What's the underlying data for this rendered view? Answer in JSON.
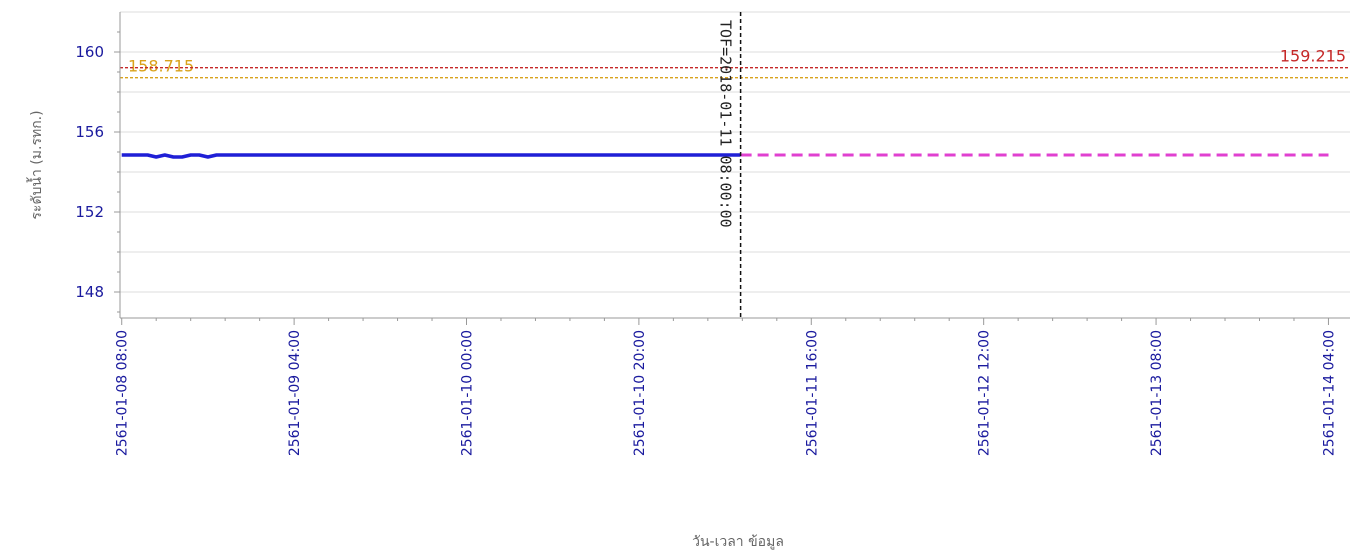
{
  "chart_data": {
    "type": "line",
    "title": "",
    "xlabel": "วัน-เวลา ข้อมูล",
    "ylabel": "ระดับน้ำ (ม.รทก.)",
    "ylim": [
      146.7,
      162.0
    ],
    "y_ticks": [
      148,
      152,
      156,
      160
    ],
    "x_tick_labels": [
      "2561-01-08 08:00",
      "2561-01-09 04:00",
      "2561-01-10 00:00",
      "2561-01-10 20:00",
      "2561-01-11 16:00",
      "2561-01-12 12:00",
      "2561-01-13 08:00",
      "2561-01-14 04:00"
    ],
    "x_tick_hours": [
      0,
      20,
      40,
      60,
      80,
      100,
      120,
      140
    ],
    "xlim_hours": [
      -0.2,
      142.5
    ],
    "grid": true,
    "series": [
      {
        "style": "observed",
        "color": "#1f1fd6",
        "x_hours": [
          0,
          1,
          2,
          3,
          4,
          5,
          6,
          7,
          8,
          9,
          10,
          11,
          12,
          14,
          18,
          24,
          30,
          40,
          50,
          60,
          65,
          71.8
        ],
        "values": [
          154.85,
          154.85,
          154.85,
          154.85,
          154.75,
          154.85,
          154.75,
          154.75,
          154.85,
          154.85,
          154.75,
          154.85,
          154.85,
          154.85,
          154.85,
          154.85,
          154.85,
          154.85,
          154.85,
          154.85,
          154.85,
          154.85
        ]
      },
      {
        "style": "forecast",
        "color": "#e040d0",
        "x_hours": [
          71.8,
          140
        ],
        "values": [
          154.85,
          154.85
        ]
      }
    ],
    "reference_lines": [
      {
        "value": 158.715,
        "label": "158.715",
        "color": "#d9a21b",
        "label_position": "left"
      },
      {
        "value": 159.215,
        "label": "159.215",
        "color": "#c62828",
        "label_position": "right"
      }
    ],
    "marker": {
      "x_hours": 71.8,
      "label": "TOF=2018-01-11 08:00:00"
    }
  }
}
